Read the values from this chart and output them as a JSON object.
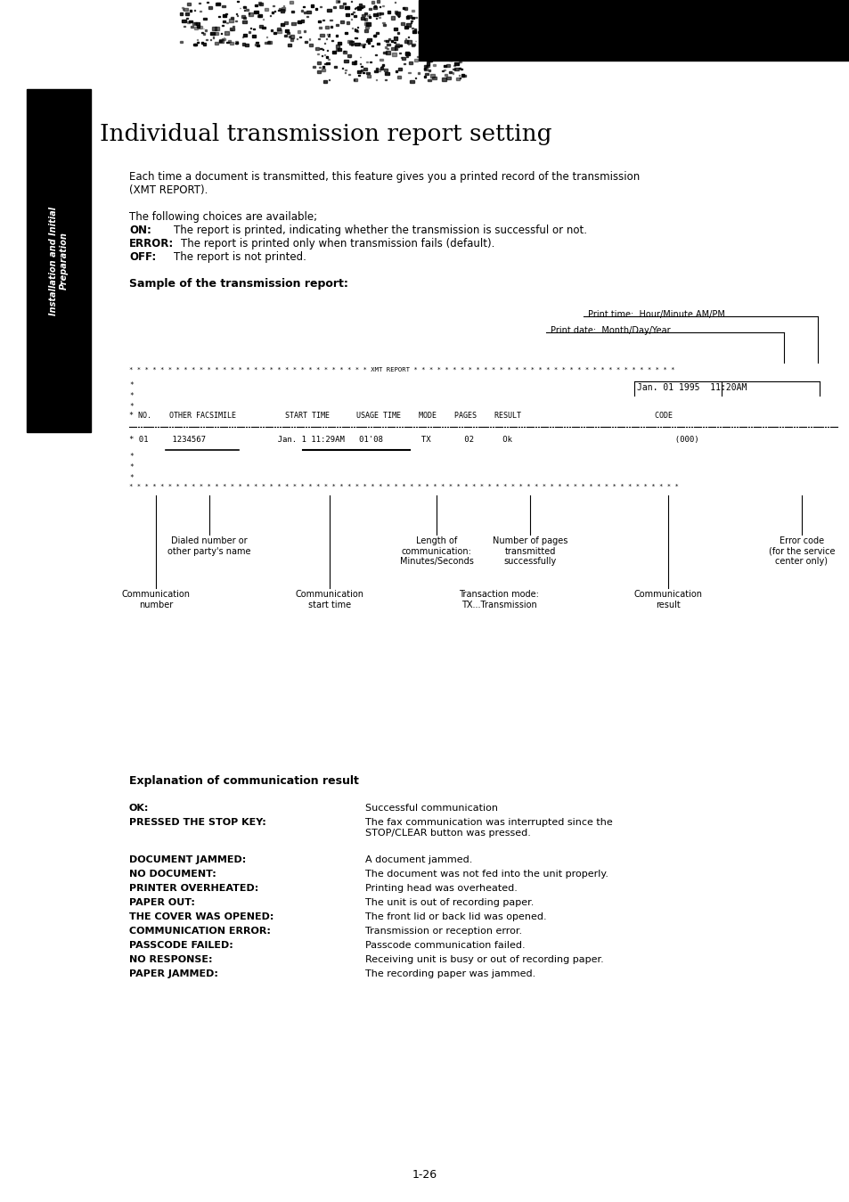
{
  "bg_color": "#ffffff",
  "page_width": 9.54,
  "page_height": 13.49,
  "title": "Individual transmission report setting",
  "sidebar_text": "Installation and Initial\nPreparation",
  "intro_text1": "Each time a document is transmitted, this feature gives you a printed record of the transmission\n(XMT REPORT).",
  "intro_text2": "The following choices are available;",
  "on_label": "ON:",
  "on_text": "The report is printed, indicating whether the transmission is successful or not.",
  "error_label": "ERROR:",
  "error_text": "The report is printed only when transmission fails (default).",
  "off_label": "OFF:",
  "off_text": "The report is not printed.",
  "sample_label": "Sample of the transmission report:",
  "print_time_label": "Print time:  Hour/Minute AM/PM",
  "print_date_label": "Print date:  Month/Day/Year",
  "report_date": "Jan. 01 1995  11:20AM",
  "label_comm_number": "Communication\nnumber",
  "label_dialed": "Dialed number or\nother party's name",
  "label_comm_start": "Communication\nstart time",
  "label_length": "Length of\ncommunication:\nMinutes/Seconds",
  "label_pages": "Number of pages\ntransmitted\nsuccessfully",
  "label_comm_result": "Communication\nresult",
  "label_error_code": "Error code\n(for the service\ncenter only)",
  "label_tx": "Transaction mode:\nTX...Transmission",
  "expl_title": "Explanation of communication result",
  "error_codes": [
    [
      "OK:",
      "Successful communication"
    ],
    [
      "PRESSED THE STOP KEY:",
      "The fax communication was interrupted since the\nSTOP/CLEAR button was pressed."
    ],
    [
      "",
      ""
    ],
    [
      "DOCUMENT JAMMED:",
      "A document jammed."
    ],
    [
      "NO DOCUMENT:",
      "The document was not fed into the unit properly."
    ],
    [
      "PRINTER OVERHEATED:",
      "Printing head was overheated."
    ],
    [
      "PAPER OUT:",
      "The unit is out of recording paper."
    ],
    [
      "THE COVER WAS OPENED:",
      "The front lid or back lid was opened."
    ],
    [
      "COMMUNICATION ERROR:",
      "Transmission or reception error."
    ],
    [
      "PASSCODE FAILED:",
      "Passcode communication failed."
    ],
    [
      "NO RESPONSE:",
      "Receiving unit is busy or out of recording paper."
    ],
    [
      "PAPER JAMMED:",
      "The recording paper was jammed."
    ]
  ],
  "page_number": "1-26"
}
